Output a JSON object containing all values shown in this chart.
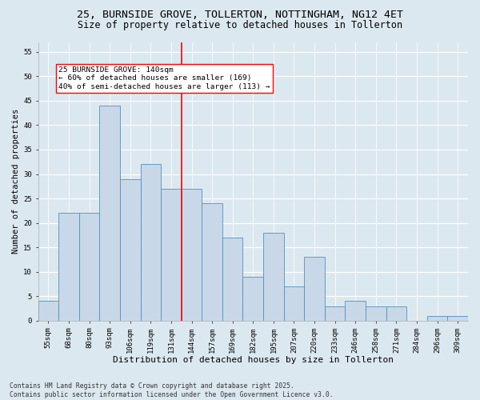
{
  "title_line1": "25, BURNSIDE GROVE, TOLLERTON, NOTTINGHAM, NG12 4ET",
  "title_line2": "Size of property relative to detached houses in Tollerton",
  "xlabel": "Distribution of detached houses by size in Tollerton",
  "ylabel": "Number of detached properties",
  "categories": [
    "55sqm",
    "68sqm",
    "80sqm",
    "93sqm",
    "106sqm",
    "119sqm",
    "131sqm",
    "144sqm",
    "157sqm",
    "169sqm",
    "182sqm",
    "195sqm",
    "207sqm",
    "220sqm",
    "233sqm",
    "246sqm",
    "258sqm",
    "271sqm",
    "284sqm",
    "296sqm",
    "309sqm"
  ],
  "values": [
    4,
    22,
    22,
    44,
    29,
    32,
    27,
    27,
    24,
    17,
    9,
    18,
    7,
    13,
    3,
    4,
    3,
    3,
    0,
    1,
    1
  ],
  "bar_color": "#c8d8e8",
  "bar_edge_color": "#5590bb",
  "vline_index": 7,
  "vline_color": "red",
  "vline_linewidth": 1.2,
  "annotation_text": "25 BURNSIDE GROVE: 140sqm\n← 60% of detached houses are smaller (169)\n40% of semi-detached houses are larger (113) →",
  "annotation_box_color": "white",
  "annotation_box_edge_color": "red",
  "ylim": [
    0,
    57
  ],
  "yticks": [
    0,
    5,
    10,
    15,
    20,
    25,
    30,
    35,
    40,
    45,
    50,
    55
  ],
  "background_color": "#dce8f0",
  "grid_color": "white",
  "footnote": "Contains HM Land Registry data © Crown copyright and database right 2025.\nContains public sector information licensed under the Open Government Licence v3.0.",
  "title_fontsize": 9.5,
  "subtitle_fontsize": 8.5,
  "xlabel_fontsize": 8,
  "ylabel_fontsize": 7.5,
  "tick_fontsize": 6.5,
  "annotation_fontsize": 6.8,
  "footnote_fontsize": 5.8
}
